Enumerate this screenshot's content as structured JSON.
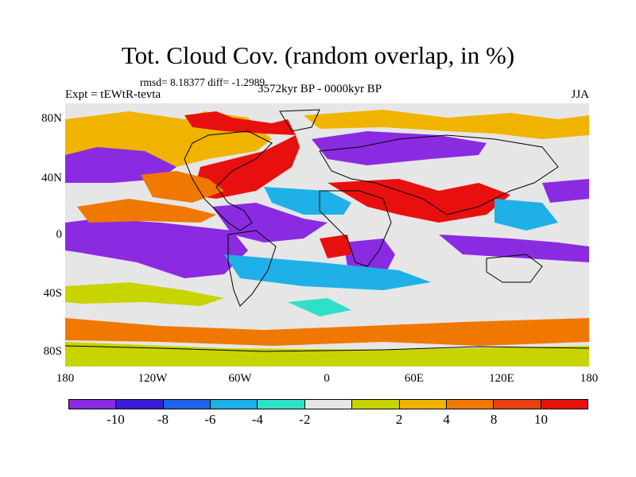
{
  "header": {
    "title": "Tot. Cloud Cov. (random overlap, in %)",
    "stats": "rmsd= 8.18377 diff= -1.2989",
    "experiment": "Expt = tEWtR-tevta",
    "period": "3572kyr BP - 0000kyr BP",
    "season": "JJA"
  },
  "axes": {
    "y_labels": [
      "80N",
      "40N",
      "0",
      "40S",
      "80S"
    ],
    "x_labels": [
      "180",
      "120W",
      "60W",
      "0",
      "60E",
      "120E",
      "180"
    ]
  },
  "colorbar": {
    "colors": [
      "#8a2be2",
      "#3a1fd6",
      "#1f63e8",
      "#1fb0e8",
      "#2ee0c8",
      "#e6e6e6",
      "#c8d400",
      "#f0b400",
      "#f07800",
      "#e84010",
      "#e8100e"
    ],
    "labels": [
      "-10",
      "-8",
      "-6",
      "-4",
      "-2",
      "2",
      "4",
      "8",
      "10"
    ]
  }
}
